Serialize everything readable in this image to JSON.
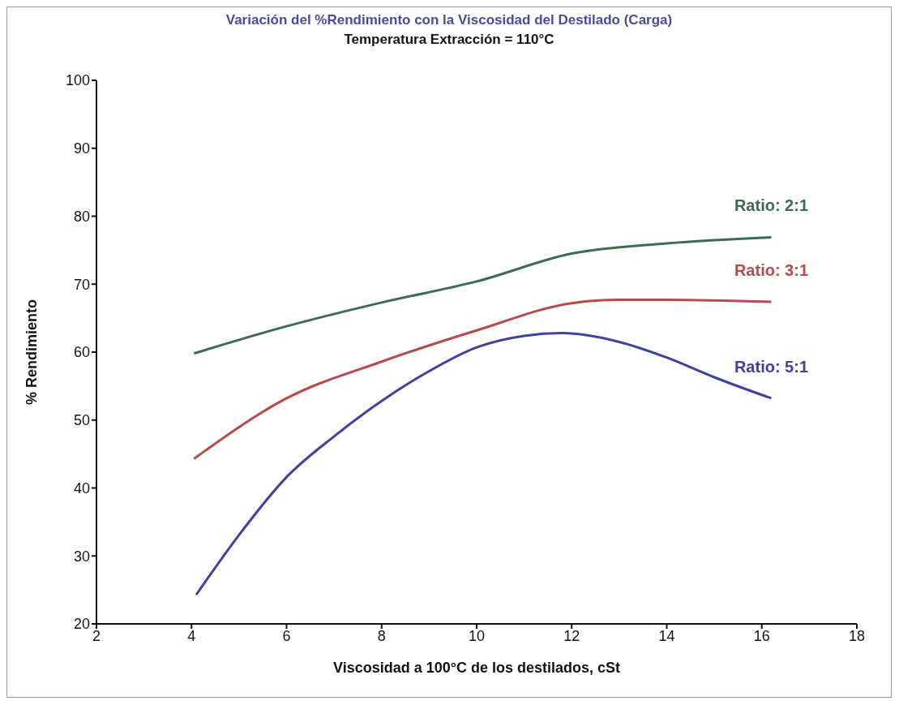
{
  "chart_data": {
    "type": "line",
    "title": "Variación del %Rendimiento con la Viscosidad del Destilado (Carga)",
    "subtitle": "Temperatura Extracción = 110°C",
    "xlabel": "Viscosidad a 100°C de los destilados, cSt",
    "ylabel": "% Rendimiento",
    "xlim": [
      2,
      18
    ],
    "xticks": [
      2,
      4,
      6,
      8,
      10,
      12,
      14,
      16,
      18
    ],
    "ylim": [
      20,
      100
    ],
    "yticks": [
      20,
      30,
      40,
      50,
      60,
      70,
      80,
      90,
      100
    ],
    "grid": false,
    "legend": false,
    "marker": "none",
    "line_style": "solid",
    "series": [
      {
        "name": "Ratio: 2:1",
        "color": "#3d6b4f",
        "x": [
          4.05,
          6,
          8,
          10,
          12,
          14,
          16.2
        ],
        "values": [
          59.8,
          63.8,
          67.3,
          70.4,
          74.5,
          76,
          76.9
        ]
      },
      {
        "name": "Ratio: 3:1",
        "color": "#b84a4a",
        "x": [
          4.05,
          6,
          8,
          10,
          12,
          13,
          14,
          16.2
        ],
        "values": [
          44.3,
          53.2,
          58.6,
          63.2,
          67.2,
          67.7,
          67.7,
          67.4
        ]
      },
      {
        "name": "Ratio: 5:1",
        "color": "#4040a0",
        "x": [
          4.1,
          5,
          6,
          7,
          8,
          9,
          10,
          11,
          11.8,
          13,
          14,
          15,
          16.2
        ],
        "values": [
          24.3,
          33.1,
          41.6,
          47.6,
          52.8,
          57.2,
          60.7,
          62.4,
          62.8,
          61.5,
          59.2,
          56.3,
          53.2
        ]
      }
    ]
  }
}
